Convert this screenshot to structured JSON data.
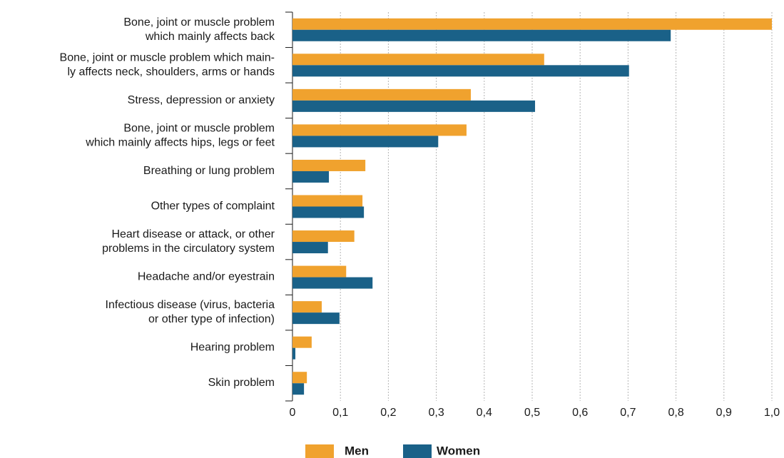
{
  "chart_data": {
    "type": "barh",
    "categories": [
      [
        "Bone, joint or muscle problem",
        "which mainly affects back"
      ],
      [
        "Bone, joint or muscle problem which main-",
        "ly affects neck, shoulders, arms or hands"
      ],
      [
        "Stress, depression or anxiety"
      ],
      [
        "Bone, joint or muscle problem",
        "which mainly affects hips, legs or feet"
      ],
      [
        "Breathing or lung problem"
      ],
      [
        "Other types of complaint"
      ],
      [
        "Heart disease or attack, or other",
        "problems in the circulatory system"
      ],
      [
        "Headache and/or eyestrain"
      ],
      [
        "Infectious disease (virus, bacteria",
        "or other type of infection)"
      ],
      [
        "Hearing problem"
      ],
      [
        "Skin problem"
      ]
    ],
    "series": [
      {
        "name": "Men",
        "color": "#f0a22e",
        "values": [
          1.0,
          0.525,
          0.372,
          0.363,
          0.152,
          0.146,
          0.129,
          0.112,
          0.061,
          0.04,
          0.03
        ]
      },
      {
        "name": "Women",
        "color": "#1a6188",
        "values": [
          0.789,
          0.702,
          0.506,
          0.304,
          0.076,
          0.149,
          0.074,
          0.167,
          0.098,
          0.006,
          0.024
        ]
      }
    ],
    "xlim": [
      0,
      1.0
    ],
    "xticks": [
      0,
      {
        "value": 0.1,
        "label": "0,1"
      },
      {
        "value": 0.2,
        "label": "0,2"
      },
      {
        "value": 0.3,
        "label": "0,3"
      },
      {
        "value": 0.4,
        "label": "0,4"
      },
      {
        "value": 0.5,
        "label": "0,5"
      },
      {
        "value": 0.6,
        "label": "0,6"
      },
      {
        "value": 0.7,
        "label": "0,7"
      },
      {
        "value": 0.8,
        "label": "0,8"
      },
      {
        "value": 0.9,
        "label": "0,9"
      },
      {
        "value": 1.0,
        "label": "1,0"
      }
    ],
    "grid": true,
    "legend": "bottom"
  }
}
